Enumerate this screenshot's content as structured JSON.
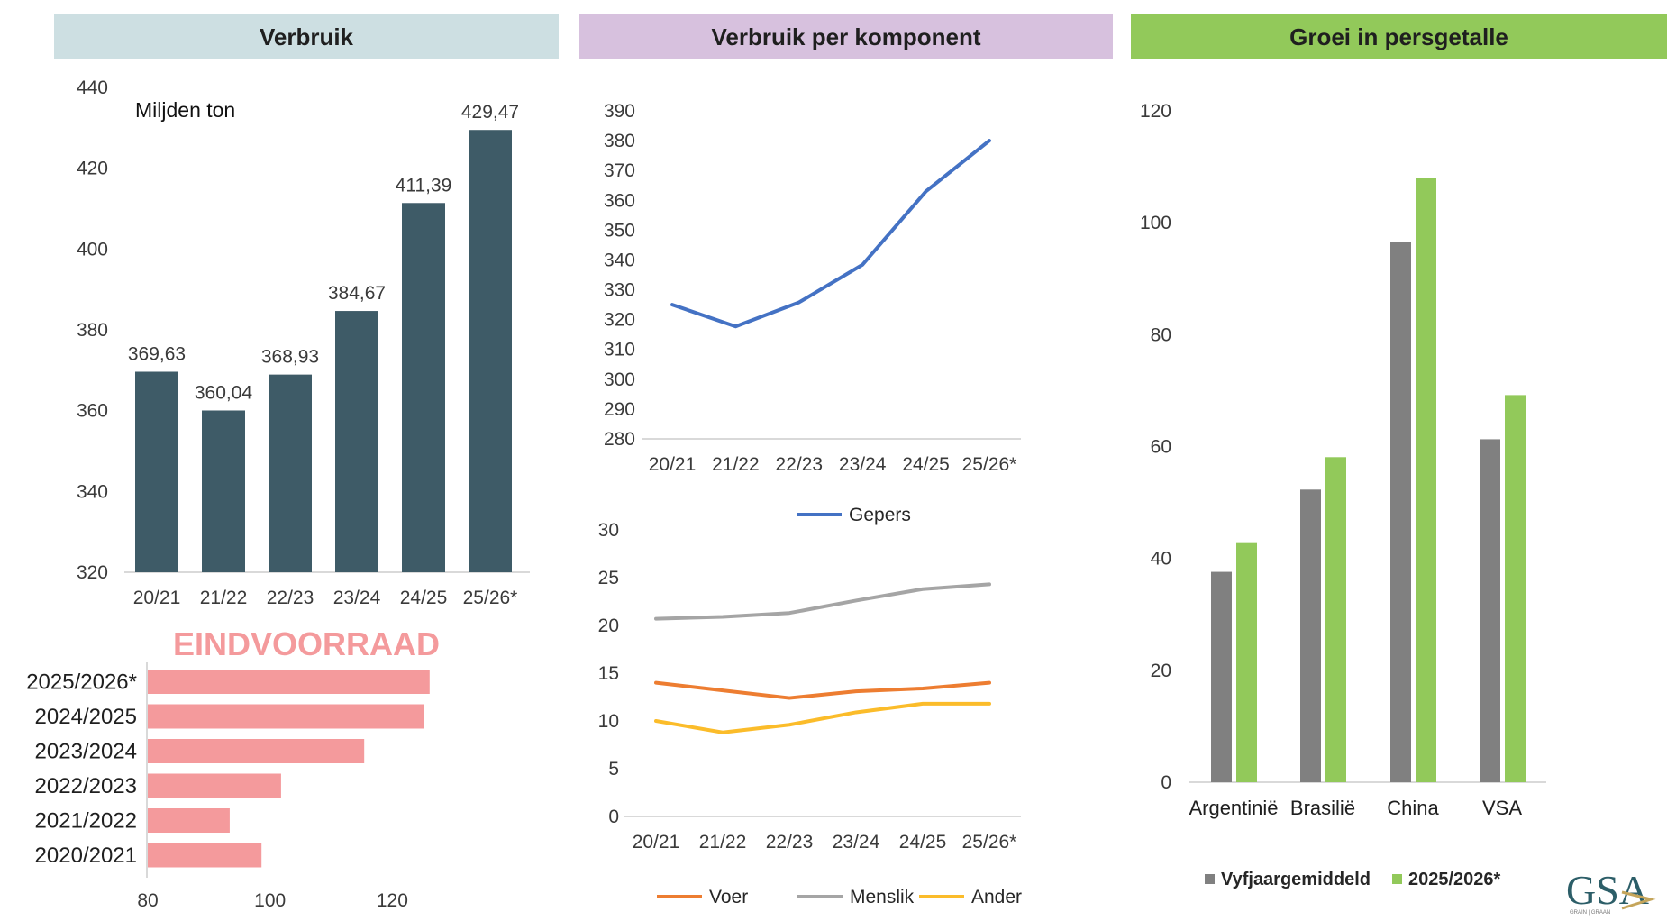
{
  "headers": {
    "panel1": "Verbruik",
    "panel2": "Verbruik per komponent",
    "panel3": "Groei in persgetalle"
  },
  "colors": {
    "panel1_header": "#cddfe2",
    "panel2_header": "#d7c1de",
    "panel3_header": "#92c95a",
    "verbruik_bar": "#3e5b67",
    "eindvoorraad_bar": "#f49a9c",
    "gepers": "#4472c4",
    "voer": "#ed7d31",
    "menslik": "#a5a5a5",
    "ander": "#fbbc2a",
    "vyfjaar": "#808080",
    "current": "#92c95a"
  },
  "logo": {
    "text": "GSA",
    "subtext": "GRAIN | GRAAN"
  },
  "chart_data": [
    {
      "id": "verbruik",
      "type": "bar",
      "title": "Verbruik",
      "unit_label": "Miljden ton",
      "categories": [
        "20/21",
        "21/22",
        "22/23",
        "23/24",
        "24/25",
        "25/26*"
      ],
      "values": [
        369.63,
        360.04,
        368.93,
        384.67,
        411.39,
        429.47
      ],
      "data_labels": [
        "369,63",
        "360,04",
        "368,93",
        "384,67",
        "411,39",
        "429,47"
      ],
      "ylim": [
        320,
        440
      ],
      "yticks": [
        320,
        340,
        360,
        380,
        400,
        420,
        440
      ],
      "grid": false
    },
    {
      "id": "eindvoorraad",
      "type": "bar",
      "orientation": "horizontal",
      "title": "EINDVOORRAAD",
      "categories": [
        "2025/2026*",
        "2024/2025",
        "2023/2024",
        "2022/2023",
        "2021/2022",
        "2020/2021"
      ],
      "values": [
        126.1,
        125.2,
        115.4,
        101.8,
        93.4,
        98.6
      ],
      "xlim": [
        80,
        130
      ],
      "xticks": [
        80,
        100,
        120
      ],
      "grid": false
    },
    {
      "id": "gepers",
      "type": "line",
      "title": "Verbruik per komponent",
      "categories": [
        "20/21",
        "21/22",
        "22/23",
        "23/24",
        "24/25",
        "25/26*"
      ],
      "series": [
        {
          "name": "Gepers",
          "values": [
            325,
            317.7,
            325.8,
            338.4,
            363,
            380
          ]
        }
      ],
      "ylim": [
        280,
        390
      ],
      "yticks": [
        280,
        290,
        300,
        310,
        320,
        330,
        340,
        350,
        360,
        370,
        380,
        390
      ],
      "legend": "bottom",
      "grid": false
    },
    {
      "id": "komponente",
      "type": "line",
      "categories": [
        "20/21",
        "21/22",
        "22/23",
        "23/24",
        "24/25",
        "25/26*"
      ],
      "series": [
        {
          "name": "Voer",
          "values": [
            14.0,
            13.2,
            12.4,
            13.1,
            13.4,
            14.0
          ]
        },
        {
          "name": "Menslik",
          "values": [
            20.7,
            20.9,
            21.3,
            22.6,
            23.8,
            24.3
          ]
        },
        {
          "name": "Ander",
          "values": [
            10.0,
            8.8,
            9.6,
            10.9,
            11.8,
            11.8
          ]
        }
      ],
      "ylim": [
        0,
        30
      ],
      "yticks": [
        0,
        5,
        10,
        15,
        20,
        25,
        30
      ],
      "legend": "bottom",
      "grid": false
    },
    {
      "id": "groei",
      "type": "bar",
      "title": "Groei in persgetalle",
      "categories": [
        "Argentinië",
        "Brasilië",
        "China",
        "VSA"
      ],
      "series": [
        {
          "name": "Vyfjaargemiddeld",
          "values": [
            37.6,
            52.3,
            96.5,
            61.3
          ]
        },
        {
          "name": "2025/2026*",
          "values": [
            42.9,
            58.1,
            108.0,
            69.2
          ]
        }
      ],
      "ylim": [
        0,
        120
      ],
      "yticks": [
        0,
        20,
        40,
        60,
        80,
        100,
        120
      ],
      "legend": "bottom",
      "grid": false
    }
  ]
}
